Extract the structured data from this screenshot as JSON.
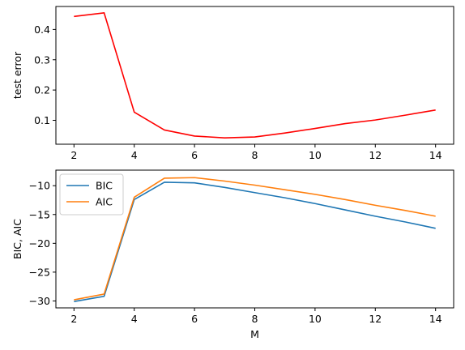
{
  "chart_data": [
    {
      "type": "line",
      "xlabel": "",
      "ylabel": "test error",
      "xlim": [
        1.4,
        14.6
      ],
      "ylim": [
        0.021,
        0.476
      ],
      "x_ticks": [
        2,
        4,
        6,
        8,
        10,
        12,
        14
      ],
      "y_ticks": [
        0.1,
        0.2,
        0.3,
        0.4
      ],
      "grid": false,
      "series": [
        {
          "color": "#ff0000",
          "x": [
            2,
            3,
            4,
            5,
            6,
            7,
            8,
            9,
            10,
            11,
            12,
            13,
            14
          ],
          "values": [
            0.443,
            0.455,
            0.127,
            0.068,
            0.048,
            0.042,
            0.045,
            0.058,
            0.073,
            0.089,
            0.101,
            0.117,
            0.134
          ]
        }
      ]
    },
    {
      "type": "line",
      "xlabel": "M",
      "ylabel": "BIC, AIC",
      "xlim": [
        1.4,
        14.6
      ],
      "ylim": [
        -31.2,
        -7.3
      ],
      "x_ticks": [
        2,
        4,
        6,
        8,
        10,
        12,
        14
      ],
      "y_ticks": [
        -30,
        -25,
        -20,
        -15,
        -10
      ],
      "grid": false,
      "legend": "upper-left",
      "series": [
        {
          "name": "BIC",
          "color": "#1f77b4",
          "x": [
            2,
            3,
            4,
            5,
            6,
            7,
            8,
            9,
            10,
            11,
            12,
            13,
            14
          ],
          "values": [
            -30.1,
            -29.2,
            -12.4,
            -9.4,
            -9.5,
            -10.3,
            -11.2,
            -12.1,
            -13.1,
            -14.2,
            -15.3,
            -16.3,
            -17.4
          ]
        },
        {
          "name": "AIC",
          "color": "#ff7f0e",
          "x": [
            2,
            3,
            4,
            5,
            6,
            7,
            8,
            9,
            10,
            11,
            12,
            13,
            14
          ],
          "values": [
            -29.8,
            -28.8,
            -12.0,
            -8.7,
            -8.6,
            -9.2,
            -9.9,
            -10.7,
            -11.5,
            -12.4,
            -13.4,
            -14.3,
            -15.3
          ]
        }
      ]
    }
  ]
}
